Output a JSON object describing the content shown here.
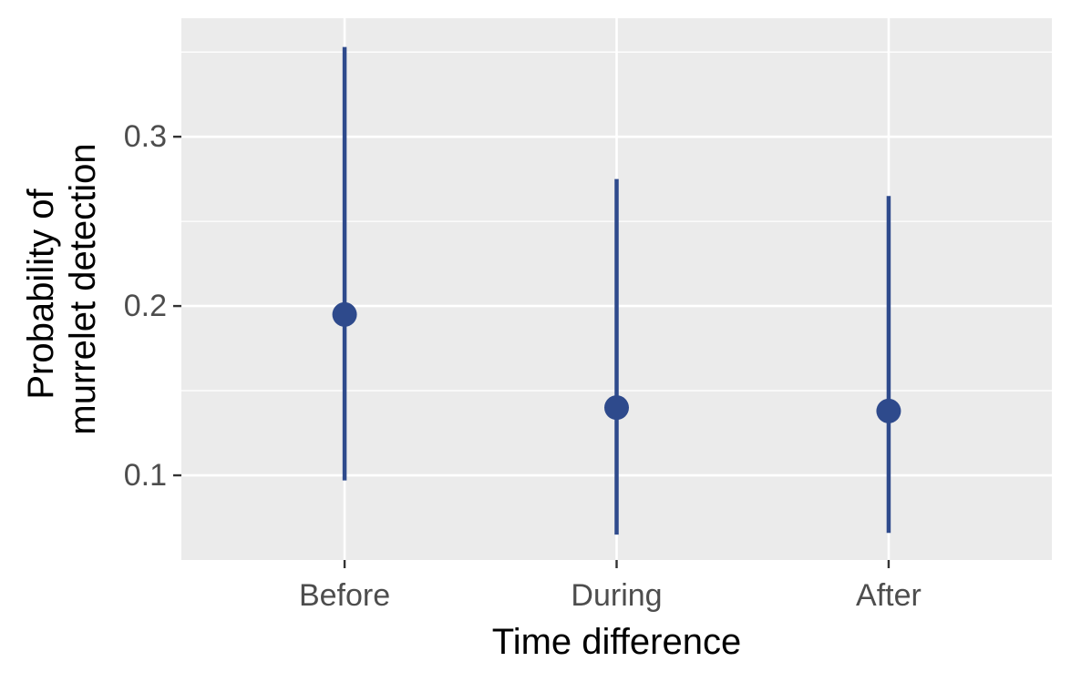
{
  "chart_data": {
    "type": "scatter",
    "subtype": "point-range",
    "title": "",
    "xlabel": "Time difference",
    "ylabel_lines": [
      "Probability of",
      "murrelet detection"
    ],
    "categories": [
      "Before",
      "During",
      "After"
    ],
    "estimate": [
      0.195,
      0.14,
      0.138
    ],
    "lower": [
      0.097,
      0.065,
      0.066
    ],
    "upper": [
      0.353,
      0.275,
      0.265
    ],
    "ylim": [
      0.05,
      0.37
    ],
    "yticks": [
      0.1,
      0.2,
      0.3
    ],
    "ytick_labels": [
      "0.1",
      "0.2",
      "0.3"
    ],
    "grid": true,
    "legend": "none",
    "colors": {
      "panel_background": "#ebebeb",
      "grid": "#ffffff",
      "point": "#2e4a8c",
      "tick_text": "#4d4d4d",
      "tick_mark": "#333333",
      "axis_title_text": "#000000"
    }
  }
}
